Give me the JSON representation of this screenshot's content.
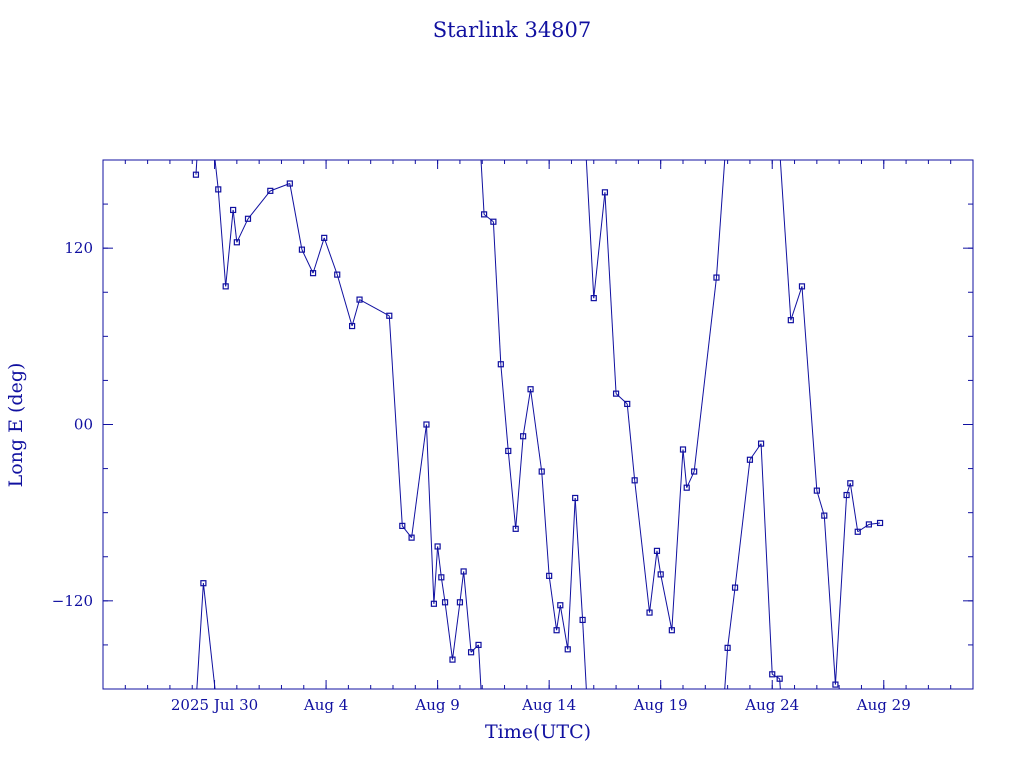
{
  "chart_data": {
    "type": "line",
    "title": "Starlink 34807",
    "xlabel": "Time(UTC)",
    "ylabel": "Long E (deg)",
    "x_unit": "days",
    "xlim": [
      "2025-07-25T00:00",
      "2025-09-02T00:00"
    ],
    "ylim": [
      -180,
      180
    ],
    "x_ticks": [
      {
        "at": "2025-07-30",
        "label": "2025 Jul 30"
      },
      {
        "at": "2025-08-04",
        "label": "Aug  4"
      },
      {
        "at": "2025-08-09",
        "label": "Aug  9"
      },
      {
        "at": "2025-08-14",
        "label": "Aug 14"
      },
      {
        "at": "2025-08-19",
        "label": "Aug 19"
      },
      {
        "at": "2025-08-24",
        "label": "Aug 24"
      },
      {
        "at": "2025-08-29",
        "label": "Aug 29"
      }
    ],
    "y_ticks": [
      {
        "value": 120,
        "label": "120"
      },
      {
        "value": 0,
        "label": "00"
      },
      {
        "value": -120,
        "label": "−120"
      }
    ],
    "grid": false,
    "legend": "none",
    "colors": {
      "series": "#1010a0",
      "axes": "#1010a0",
      "text": "#1010a0",
      "background": "#ffffff"
    },
    "series": [
      {
        "x": [
          "2025-07-29T04:00",
          "2025-07-29T12:00",
          "2025-07-30T04:00",
          "2025-07-30T12:00",
          "2025-07-30T20:00",
          "2025-07-31T00:00",
          "2025-07-31T12:00",
          "2025-08-01T12:00",
          "2025-08-02T09:00",
          "2025-08-02T22:00",
          "2025-08-03T10:00",
          "2025-08-03T22:00",
          "2025-08-04T12:00",
          "2025-08-05T04:00",
          "2025-08-05T12:00",
          "2025-08-06T20:00",
          "2025-08-07T10:00",
          "2025-08-07T20:00",
          "2025-08-08T12:00",
          "2025-08-08T20:00",
          "2025-08-09T00:00",
          "2025-08-09T04:00",
          "2025-08-09T08:00",
          "2025-08-09T16:00",
          "2025-08-10T00:00",
          "2025-08-10T04:00",
          "2025-08-10T12:00",
          "2025-08-10T20:00",
          "2025-08-11T02:00",
          "2025-08-11T12:00",
          "2025-08-11T20:00",
          "2025-08-12T04:00",
          "2025-08-12T12:00",
          "2025-08-12T20:00",
          "2025-08-13T04:00",
          "2025-08-13T16:00",
          "2025-08-14T00:00",
          "2025-08-14T08:00",
          "2025-08-14T12:00",
          "2025-08-14T20:00",
          "2025-08-15T04:00",
          "2025-08-15T12:00",
          "2025-08-16T00:00",
          "2025-08-16T12:00",
          "2025-08-17T00:00",
          "2025-08-17T12:00",
          "2025-08-17T20:00",
          "2025-08-18T12:00",
          "2025-08-18T20:00",
          "2025-08-19T00:00",
          "2025-08-19T12:00",
          "2025-08-20T00:00",
          "2025-08-20T04:00",
          "2025-08-20T12:00",
          "2025-08-21T12:00",
          "2025-08-22T00:00",
          "2025-08-22T08:00",
          "2025-08-23T00:00",
          "2025-08-23T12:00",
          "2025-08-24T00:00",
          "2025-08-24T08:00",
          "2025-08-24T20:00",
          "2025-08-25T08:00",
          "2025-08-26T00:00",
          "2025-08-26T08:00",
          "2025-08-26T20:00",
          "2025-08-27T08:00",
          "2025-08-27T12:00",
          "2025-08-27T20:00",
          "2025-08-28T08:00",
          "2025-08-28T20:00"
        ],
        "y": [
          170,
          -108,
          160,
          94,
          146,
          124,
          140,
          159,
          164,
          119,
          103,
          127,
          102,
          67,
          85,
          74,
          -69,
          -77,
          0,
          -122,
          -83,
          -104,
          -121,
          -160,
          -121,
          -100,
          -155,
          -150,
          143,
          138,
          41,
          -18,
          -71,
          -8,
          24,
          -32,
          -103,
          -140,
          -123,
          -153,
          -50,
          -133,
          86,
          158,
          21,
          14,
          -38,
          -128,
          -86,
          -102,
          -140,
          -17,
          -43,
          -32,
          100,
          -152,
          -111,
          -24,
          -13,
          -170,
          -173,
          71,
          94,
          -45,
          -62,
          -177,
          -48,
          -40,
          -73,
          -68,
          -67
        ]
      }
    ]
  }
}
